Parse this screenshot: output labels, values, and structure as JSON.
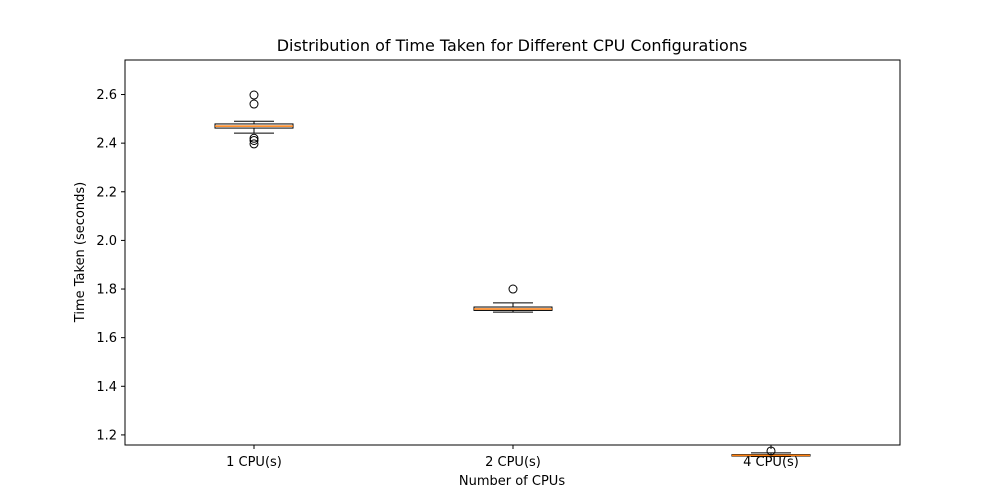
{
  "chart_data": {
    "type": "box",
    "title": "Distribution of Time Taken for Different CPU Configurations",
    "xlabel": "Number of CPUs",
    "ylabel": "Time Taken (seconds)",
    "categories": [
      "1 CPU(s)",
      "2 CPU(s)",
      "4 CPU(s)"
    ],
    "ylim": [
      1.1585,
      2.742
    ],
    "yticks": [
      1.2,
      1.4,
      1.6,
      1.8,
      2.0,
      2.2,
      2.4,
      2.6
    ],
    "ytick_labels": [
      "1.2",
      "1.4",
      "1.6",
      "1.8",
      "2.0",
      "2.2",
      "2.4",
      "2.6"
    ],
    "grid": false,
    "boxes": [
      {
        "whisker_low": 2.441,
        "q1": 2.462,
        "median": 2.47,
        "q3": 2.479,
        "whisker_high": 2.49,
        "outliers": [
          2.598,
          2.561,
          2.42,
          2.411,
          2.397
        ]
      },
      {
        "whisker_low": 1.705,
        "q1": 1.712,
        "median": 1.718,
        "q3": 1.726,
        "whisker_high": 1.743,
        "outliers": [
          1.8
        ]
      },
      {
        "whisker_low": 1.111,
        "q1": 1.113,
        "median": 1.116,
        "q3": 1.119,
        "whisker_high": 1.126,
        "outliers": [
          1.134
        ]
      }
    ],
    "colors": {
      "box_edge": "#000000",
      "box_fill": "#ffffff",
      "median": "#ff7f0e",
      "outlier": "#000000"
    }
  }
}
